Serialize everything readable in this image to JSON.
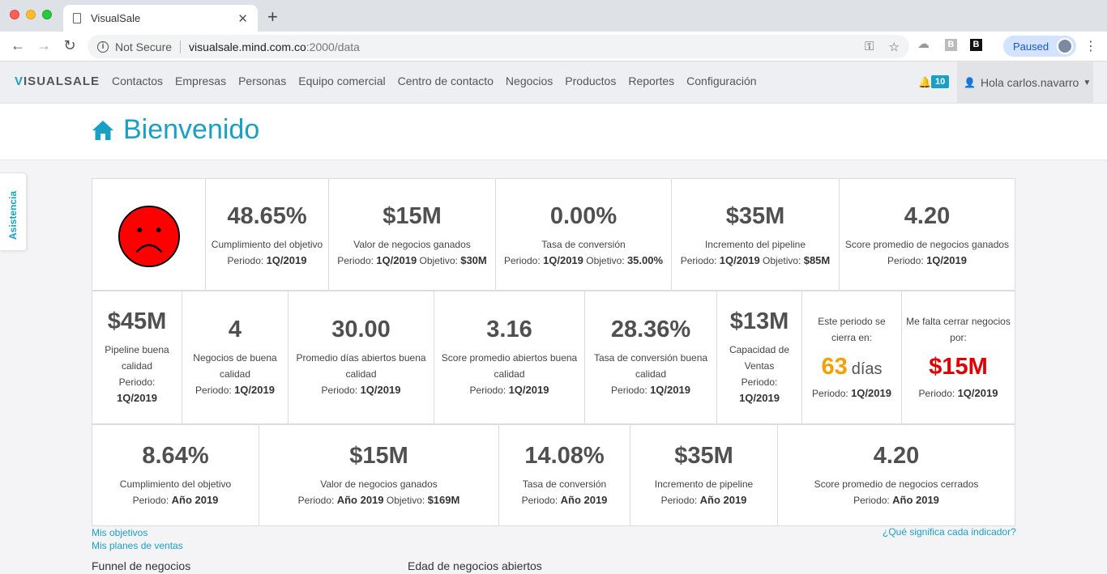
{
  "browser": {
    "tab_title": "VisualSale",
    "security_label": "Not Secure",
    "url_host": "visualsale.mind.com.co",
    "url_path": ":2000/data",
    "profile_label": "Paused",
    "ext_b1": "B",
    "ext_b2": "B"
  },
  "app": {
    "logo_first": "V",
    "logo_rest": "ISUALSALE",
    "menu": [
      "Contactos",
      "Empresas",
      "Personas",
      "Equipo comercial",
      "Centro de contacto",
      "Negocios",
      "Productos",
      "Reportes",
      "Configuración"
    ],
    "notifications_count": "10",
    "user_greeting": "Hola carlos.navarro",
    "assist_tab": "Asistencia"
  },
  "page": {
    "title": "Bienvenido"
  },
  "row1": [
    {
      "value": "48.65%",
      "label": "Cumplimiento del objetivo",
      "period_label": "Periodo:",
      "period": "1Q/2019"
    },
    {
      "value": "$15M",
      "label": "Valor de negocios ganados",
      "period_label": "Periodo:",
      "period": "1Q/2019",
      "goal_label": "Objetivo:",
      "goal": "$30M"
    },
    {
      "value": "0.00%",
      "label": "Tasa de conversión",
      "period_label": "Periodo:",
      "period": "1Q/2019",
      "goal_label": "Objetivo:",
      "goal": "35.00%"
    },
    {
      "value": "$35M",
      "label": "Incremento del pipeline",
      "period_label": "Periodo:",
      "period": "1Q/2019",
      "goal_label": "Objetivo:",
      "goal": "$85M"
    },
    {
      "value": "4.20",
      "label": "Score promedio de negocios ganados",
      "period_label": "Periodo:",
      "period": "1Q/2019"
    }
  ],
  "row2": [
    {
      "value": "$45M",
      "label": "Pipeline buena calidad",
      "period_label": "Periodo:",
      "period": "1Q/2019"
    },
    {
      "value": "4",
      "label": "Negocios de buena calidad",
      "period_label": "Periodo:",
      "period": "1Q/2019"
    },
    {
      "value": "30.00",
      "label": "Promedio días abiertos buena calidad",
      "period_label": "Periodo:",
      "period": "1Q/2019"
    },
    {
      "value": "3.16",
      "label": "Score promedio abiertos buena calidad",
      "period_label": "Periodo:",
      "period": "1Q/2019"
    },
    {
      "value": "28.36%",
      "label": "Tasa de conversión buena calidad",
      "period_label": "Periodo:",
      "period": "1Q/2019"
    },
    {
      "value": "$13M",
      "label": "Capacidad de Ventas",
      "period_label": "Periodo:",
      "period": "1Q/2019"
    },
    {
      "top": "Este periodo se cierra en:",
      "value": "63",
      "unit": "días",
      "period_label": "Periodo:",
      "period": "1Q/2019"
    },
    {
      "top": "Me falta cerrar negocios por:",
      "value": "$15M",
      "period_label": "Periodo:",
      "period": "1Q/2019"
    }
  ],
  "row3": [
    {
      "value": "8.64%",
      "label": "Cumplimiento del objetivo",
      "period_label": "Periodo:",
      "period": "Año 2019"
    },
    {
      "value": "$15M",
      "label": "Valor de negocios ganados",
      "period_label": "Periodo:",
      "period": "Año 2019",
      "goal_label": "Objetivo:",
      "goal": "$169M"
    },
    {
      "value": "14.08%",
      "label": "Tasa de conversión",
      "period_label": "Periodo:",
      "period": "Año 2019"
    },
    {
      "value": "$35M",
      "label": "Incremento de pipeline",
      "period_label": "Periodo:",
      "period": "Año 2019"
    },
    {
      "value": "4.20",
      "label": "Score promedio de negocios cerrados",
      "period_label": "Periodo:",
      "period": "Año 2019"
    }
  ],
  "links": {
    "my_goals": "Mis objetivos",
    "my_plans": "Mis planes de ventas",
    "help": "¿Qué significa cada indicador?"
  },
  "sections": {
    "funnel": "Funnel de negocios",
    "age": "Edad de negocios abiertos"
  },
  "colors": {
    "accent": "#1aa0c4",
    "days": "#f5a000",
    "alert": "#e00000",
    "face": "#ff0000"
  }
}
